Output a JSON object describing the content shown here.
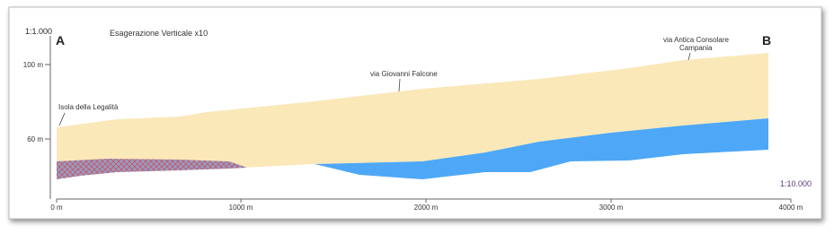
{
  "scale_top": "1:1.000",
  "label_a": "A",
  "label_b": "B",
  "exaggeration": "Esagerazione Verticale x10",
  "scale_bottom": "1:10.000",
  "y_ticks": [
    "100 m",
    "60 m"
  ],
  "x_ticks": [
    "0 m",
    "1000 m",
    "2000 m",
    "3000 m",
    "4000 m"
  ],
  "annotations": [
    "Isola della Legalità",
    "via Giovanni Falcone",
    "via Antica Consolare",
    "Campania"
  ]
}
